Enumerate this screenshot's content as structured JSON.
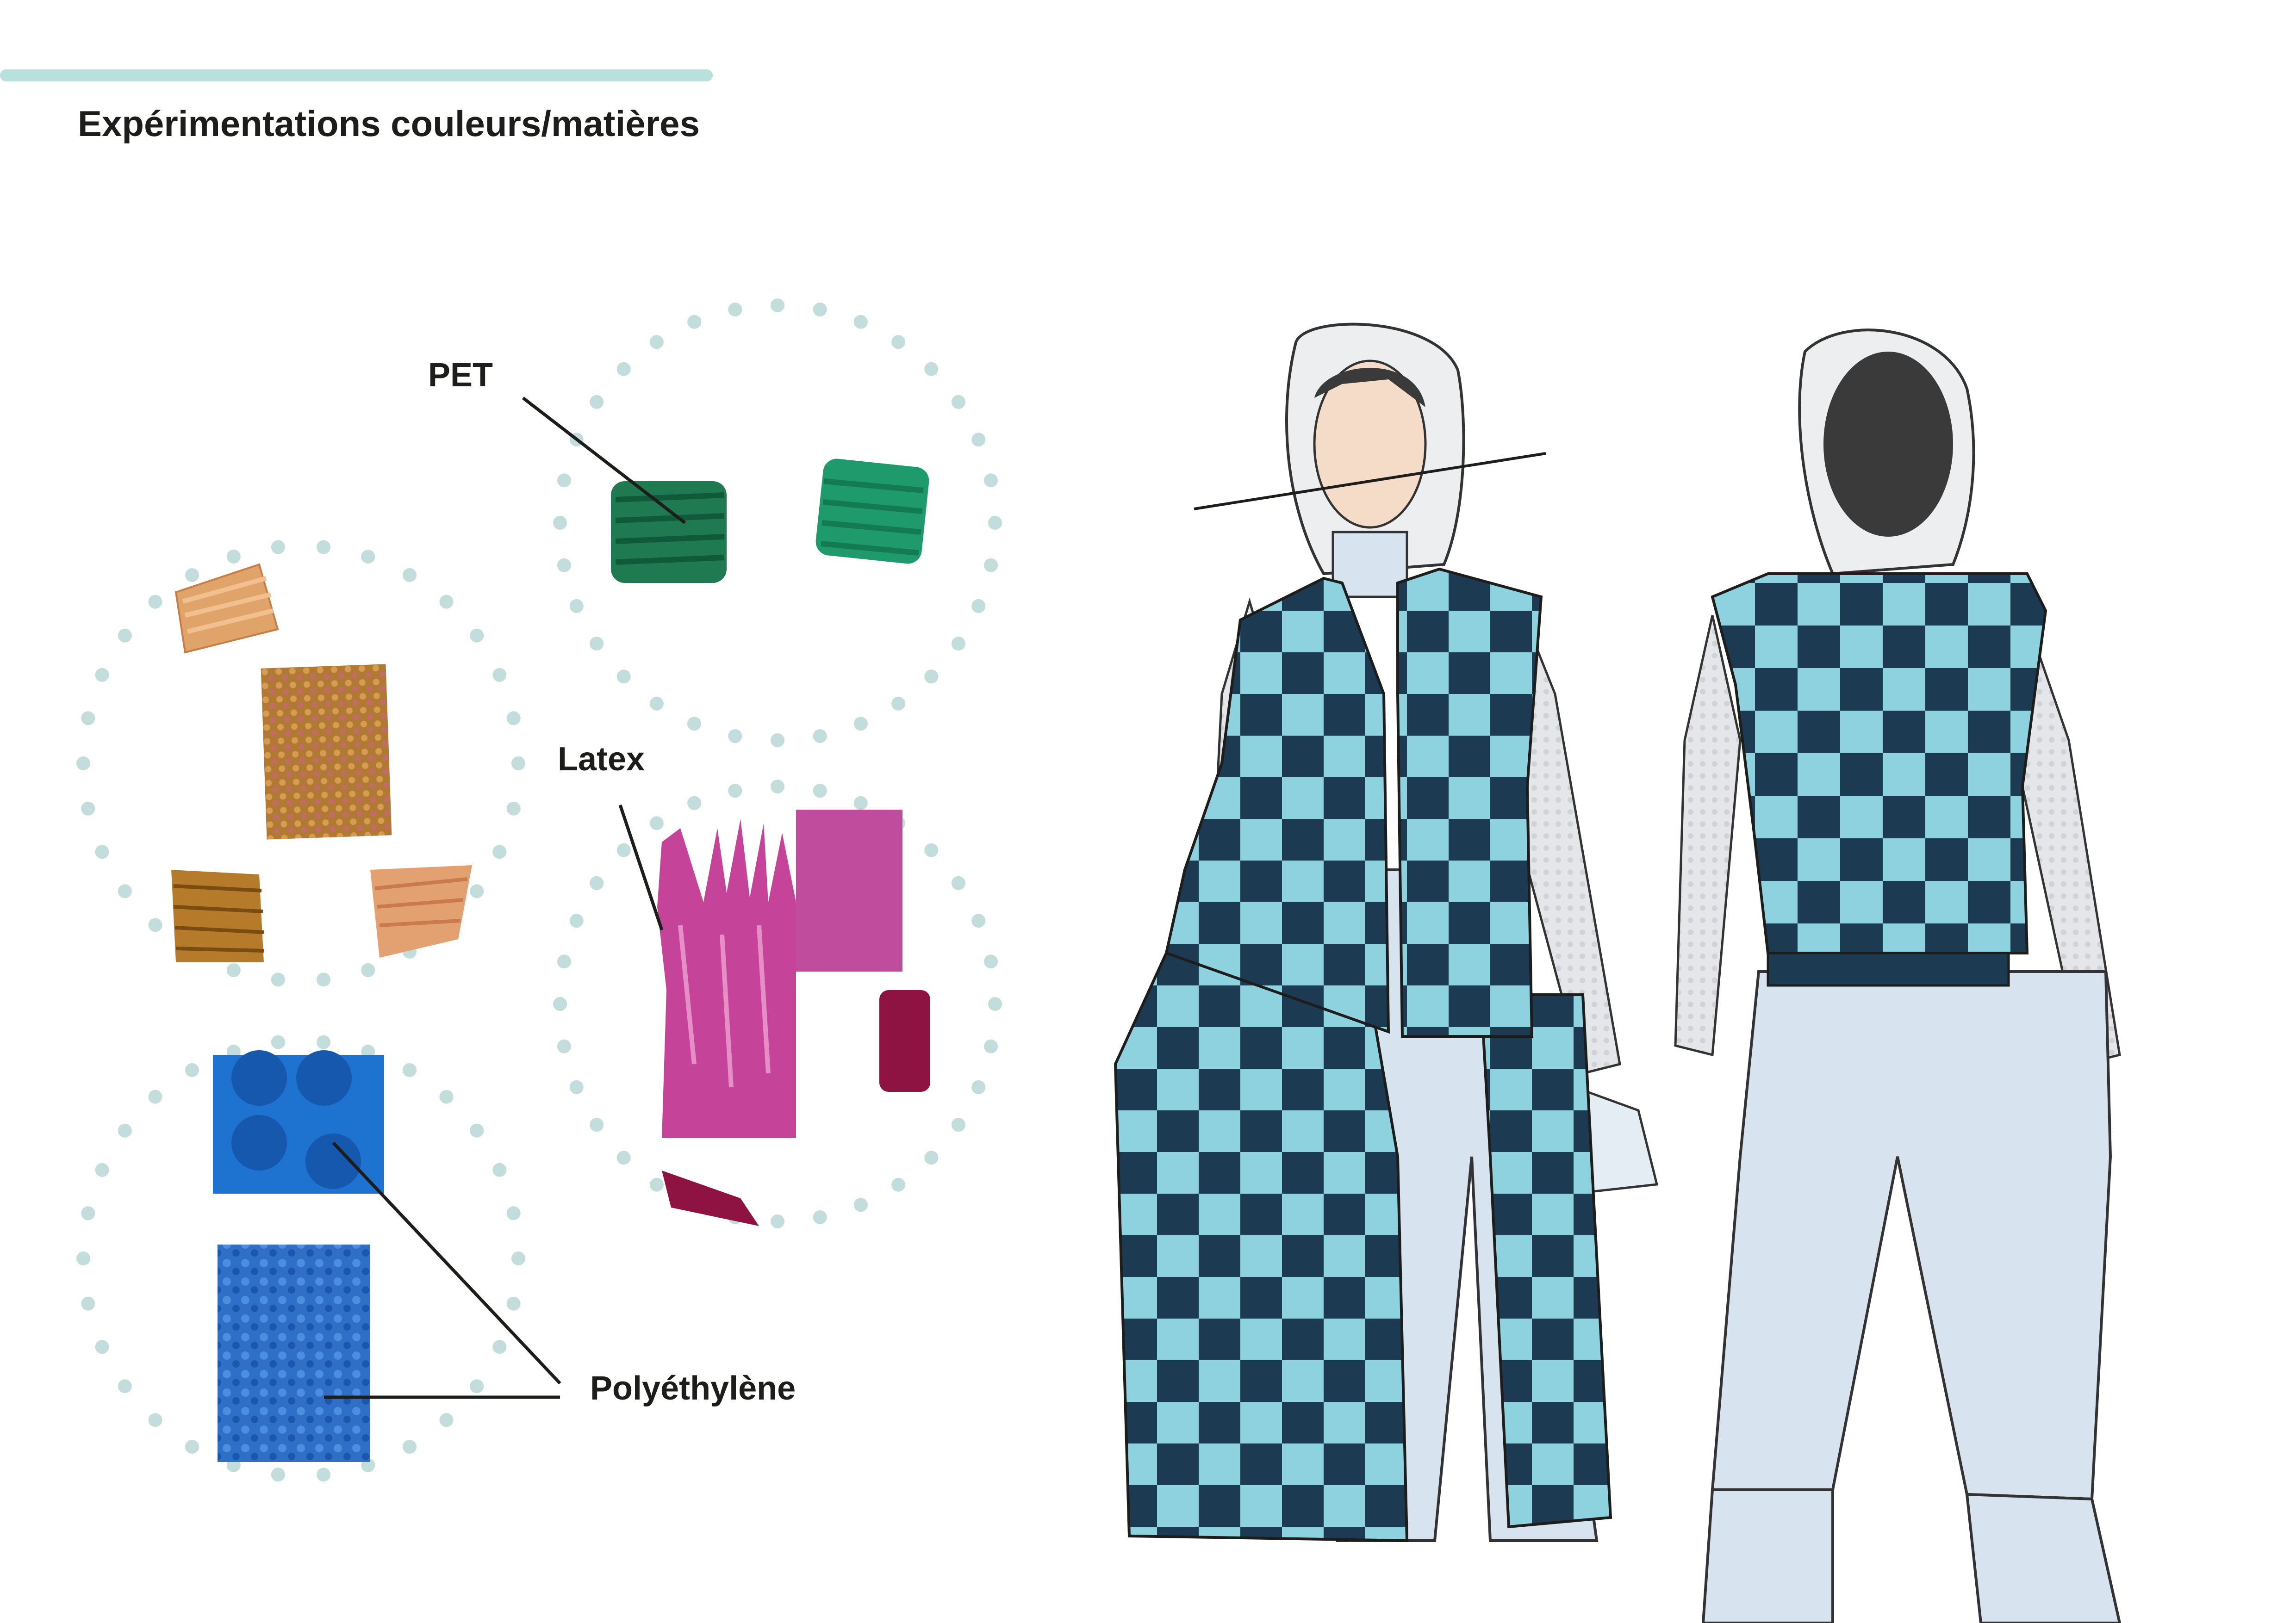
{
  "title": "Expérimentations couleurs/matières",
  "labels": {
    "pet": "PET",
    "latex": "Latex",
    "polyethylene": "Polyéthylène"
  },
  "colors": {
    "accent_bar": "#b8e0dc",
    "dots": "#c3dcdc",
    "check_dark": "#1c3b53",
    "check_light": "#8fd2df",
    "shirt": "#d7e4ef",
    "sleeve": "#e4e6e9",
    "pet_green": "#1f7a52",
    "pet_green_light": "#1f9a6c",
    "copper": "#b9753c",
    "latex_pink": "#c5449a",
    "latex_red": "#8e1343",
    "pe_blue": "#1f73d0",
    "skin": "#f5dcc8"
  },
  "illustrations": {
    "samples": [
      "copper-samples",
      "pet-samples",
      "latex-samples",
      "polyethylene-samples"
    ],
    "figures": [
      "front-view-figure",
      "back-view-figure"
    ]
  }
}
